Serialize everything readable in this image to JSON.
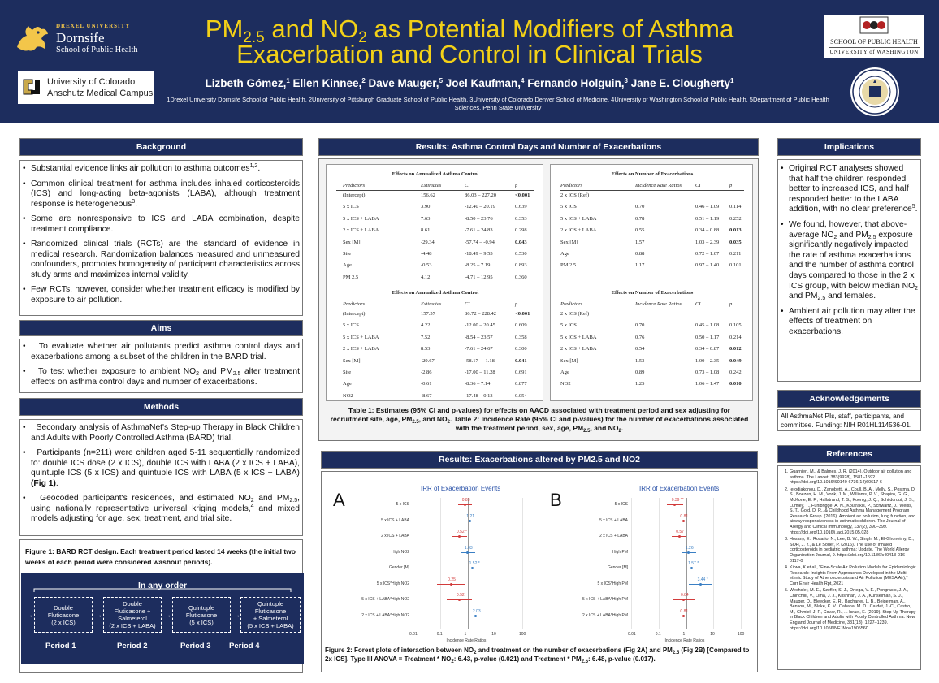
{
  "header": {
    "title_parts": [
      "PM",
      "2.5",
      " and NO",
      "2",
      " as Potential Modifiers of Asthma",
      "Exacerbation and Control in Clinical Trials"
    ],
    "authors": [
      {
        "name": "Lizbeth Gómez,",
        "sup": "1"
      },
      {
        "name": " Ellen Kinnee,",
        "sup": "2"
      },
      {
        "name": " Dave Mauger,",
        "sup": "5"
      },
      {
        "name": " Joel Kaufman,",
        "sup": "4"
      },
      {
        "name": " Fernando Holguin,",
        "sup": "3"
      },
      {
        "name": " Jane E. Clougherty",
        "sup": "1"
      }
    ],
    "affiliations": "1Drexel University Dornsife School of Public Health, 2University of Pittsburgh Graduate School of Public Health, 3University of Colorado Denver School of Medicine, 4University of Washington School of Public Health, 5Department of Public Health Sciences, Penn State University",
    "logos": {
      "drexel_small": "DREXEL UNIVERSITY",
      "drexel_big": "Dornsife",
      "drexel_sub": "School of Public Health",
      "cu_line1": "University of Colorado",
      "cu_line2": "Anschutz Medical Campus",
      "uw_line1": "SCHOOL OF PUBLIC HEALTH",
      "uw_line2": "UNIVERSITY of WASHINGTON"
    }
  },
  "background": {
    "title": "Background",
    "items": [
      "Substantial evidence links air pollution to asthma outcomes1,2.",
      "Common clinical treatment for asthma includes inhaled corticosteroids (ICS) and long-acting beta-agonists (LABA), although treatment response is heterogeneous3.",
      "Some are nonresponsive to ICS and  LABA combination, despite treatment compliance.",
      "Randomized clinical trials (RCTs) are the standard of evidence in medical research. Randomization balances measured and unmeasured confounders, promotes homogeneity of participant characteristics across study arms and maximizes internal validity.",
      "Few RCTs, however, consider whether treatment efficacy is modified by exposure to air pollution."
    ]
  },
  "aims": {
    "title": "Aims",
    "item1": "To evaluate whether air pollutants predict asthma control days and exacerbations among a subset of the children in the BARD trial.",
    "item2_parts": [
      "To test whether exposure to ambient NO",
      "2",
      " and PM",
      "2.5",
      " alter treatment effects on asthma control days and number of exacerbations."
    ]
  },
  "methods": {
    "title": "Methods",
    "item1": "Secondary analysis of AsthmaNet's Step-up Therapy in Black Children and Adults with Poorly Controlled Asthma (BARD) trial.",
    "item2_text": "Participants (n=211) were children aged 5-11 sequentially randomized to: double ICS dose (2 x ICS), double ICS with LABA (2 x ICS + LABA), quintuple ICS (5 x ICS) and quintuple ICS with LABA (5 x ICS + LABA) ",
    "item2_bold": "(Fig 1)",
    "item2_end": ".",
    "item3_parts": [
      "Geocoded participant's residences, and estimated NO",
      "2",
      " and PM",
      "2.5",
      ", using nationally representative universal kriging models,",
      "4",
      " and mixed models adjusting for age, sex, treatment, and trial site."
    ],
    "fig1_caption": "Figure 1: BARD RCT design. Each treatment period lasted 14 weeks (the initial two weeks of each period were considered washout periods).",
    "design": {
      "order_label": "In any order",
      "boxes": [
        [
          "Double",
          "Fluticasone",
          "(2 x ICS)"
        ],
        [
          "Double",
          "Fluticasone +",
          "Salmeterol",
          "(2 x ICS + LABA)"
        ],
        [
          "Quintuple",
          "Fluticasone",
          "(5 x ICS)"
        ],
        [
          "Quintuple Fluticasone",
          "+ Salmeterol",
          "(5 x ICS + LABA)"
        ]
      ],
      "periods": [
        "Period 1",
        "Period 2",
        "Period 3",
        "Period 4"
      ]
    }
  },
  "results": {
    "title": "Results: Asthma Control Days and Number of Exacerbations",
    "tables": [
      {
        "heading": "Effects on Annualized Asthma Control",
        "cols": [
          "Predictors",
          "Estimates",
          "CI",
          "p"
        ],
        "rows": [
          [
            "(Intercept)",
            "156.62",
            "86.03 – 227.20",
            "<0.001"
          ],
          [
            "5 x ICS",
            "3.90",
            "-12.40 – 20.19",
            "0.639"
          ],
          [
            "5 x ICS + LABA",
            "7.63",
            "-8.50 – 23.76",
            "0.353"
          ],
          [
            "2 x ICS + LABA",
            "8.61",
            "-7.61 – 24.83",
            "0.298"
          ],
          [
            "Sex [M]",
            "-29.34",
            "-57.74 – -0.94",
            "0.043"
          ],
          [
            "Site",
            "-4.48",
            "-18.49 – 9.53",
            "0.530"
          ],
          [
            "Age",
            "-0.53",
            "-8.25 – 7.19",
            "0.893"
          ],
          [
            "PM 2.5",
            "4.12",
            "-4.71 – 12.95",
            "0.360"
          ]
        ],
        "bold_rows": [
          0,
          4
        ]
      },
      {
        "heading": "Effects on Annualized Asthma Control",
        "cols": [
          "Predictors",
          "Estimates",
          "CI",
          "p"
        ],
        "rows": [
          [
            "(Intercept)",
            "157.57",
            "86.72 – 228.42",
            "<0.001"
          ],
          [
            "5 x ICS",
            "4.22",
            "-12.00 – 20.45",
            "0.609"
          ],
          [
            "5 x ICS + LABA",
            "7.52",
            "-8.54 – 23.57",
            "0.358"
          ],
          [
            "2 x ICS + LABA",
            "8.53",
            "-7.61 – 24.67",
            "0.300"
          ],
          [
            "Sex [M]",
            "-29.67",
            "-58.17 – -1.18",
            "0.041"
          ],
          [
            "Site",
            "-2.86",
            "-17.00 – 11.28",
            "0.691"
          ],
          [
            "Age",
            "-0.61",
            "-8.36 – 7.14",
            "0.877"
          ],
          [
            "NO2",
            "-8.67",
            "-17.48 – 0.13",
            "0.054"
          ]
        ],
        "bold_rows": [
          0,
          4
        ]
      },
      {
        "heading": "Effects on Number of Exacerbations",
        "cols": [
          "Predictors",
          "Incidence Rate Ratios",
          "CI",
          "p"
        ],
        "rows": [
          [
            "2 x ICS (Ref)",
            "",
            "",
            ""
          ],
          [
            "5 x ICS",
            "0.70",
            "0.46 – 1.09",
            "0.114"
          ],
          [
            "5 x ICS + LABA",
            "0.78",
            "0.51 – 1.19",
            "0.252"
          ],
          [
            "2 x ICS + LABA",
            "0.55",
            "0.34 – 0.88",
            "0.013"
          ],
          [
            "Sex [M]",
            "1.57",
            "1.03 – 2.39",
            "0.035"
          ],
          [
            "Age",
            "0.88",
            "0.72 – 1.07",
            "0.211"
          ],
          [
            "PM 2.5",
            "1.17",
            "0.97 – 1.40",
            "0.101"
          ]
        ],
        "bold_rows": [
          3,
          4
        ]
      },
      {
        "heading": "Effects on Number of Exacerbations",
        "cols": [
          "Predictors",
          "Incidence Rate Ratios",
          "CI",
          "p"
        ],
        "rows": [
          [
            "2 x ICS (Ref)",
            "",
            "",
            ""
          ],
          [
            "5 x ICS",
            "0.70",
            "0.45 – 1.08",
            "0.105"
          ],
          [
            "5 x ICS + LABA",
            "0.76",
            "0.50 – 1.17",
            "0.214"
          ],
          [
            "2 x ICS + LABA",
            "0.54",
            "0.34 – 0.87",
            "0.012"
          ],
          [
            "Sex [M]",
            "1.53",
            "1.00 – 2.35",
            "0.049"
          ],
          [
            "Age",
            "0.89",
            "0.73 – 1.08",
            "0.242"
          ],
          [
            "NO2",
            "1.25",
            "1.06 – 1.47",
            "0.010"
          ]
        ],
        "bold_rows": [
          3,
          4,
          6
        ]
      }
    ],
    "caption_parts": [
      "Table 1: Estimates (95% CI and p-values) for effects on AACD associated with treatment period and sex adjusting for recruitment site, age, PM",
      "2.5",
      ", and NO",
      "2",
      ". Table 2: Incidence Rate (95% CI and p-values) for the number of exacerbations associated with the treatment period, sex, age, PM",
      "2.5",
      ", and NO",
      "2",
      "."
    ]
  },
  "exacerbations": {
    "title": "Results: Exacerbations altered by PM2.5 and NO2",
    "fig2_caption_parts": [
      "Figure 2:  Forest plots of interaction between NO",
      "2",
      " and treatment on the number of exacerbations (Fig 2A) and PM",
      "2.5",
      " (Fig 2B) [Compared to 2x ICS]. Type III ANOVA = Treatment * NO",
      "2",
      ": 6.43, p-value (0.021) and Treatment * PM",
      "2.5",
      ": 6.48, p-value (0.017)."
    ]
  },
  "chart_data": [
    {
      "type": "scatter",
      "panel_label": "A",
      "title": "IRR of Exacerbation Events",
      "xlabel": "Incidence Rate Ratios",
      "xscale": "log",
      "xlim": [
        0.01,
        100
      ],
      "xticks": [
        "0.01",
        "0.1",
        "1",
        "10",
        "100"
      ],
      "categories": [
        "5 x ICS",
        "5 x ICS + LABA",
        "2 x ICS + LABA",
        "High NO2",
        "Gender [M]",
        "5 x ICS*High NO2",
        "5 x ICS + LABA*High NO2",
        "2 x ICS + LABA*High NO2"
      ],
      "values": [
        0.83,
        1.21,
        0.52,
        1.03,
        1.52,
        0.25,
        0.52,
        2.03
      ],
      "ci_low": [
        0.45,
        0.7,
        0.28,
        0.55,
        1.0,
        0.08,
        0.18,
        0.7
      ],
      "ci_high": [
        1.5,
        2.1,
        0.95,
        1.9,
        2.3,
        0.8,
        1.5,
        5.9
      ],
      "value_labels": [
        "0.83",
        "1.21",
        "0.52 *",
        "1.03",
        "1.52 *",
        "0.25",
        "0.52",
        "2.03"
      ],
      "colors": [
        "#d23b3b",
        "#3a7fc4",
        "#d23b3b",
        "#3a7fc4",
        "#3a7fc4",
        "#d23b3b",
        "#d23b3b",
        "#3a7fc4"
      ]
    },
    {
      "type": "scatter",
      "panel_label": "B",
      "title": "IRR of Exacerbation Events",
      "xlabel": "Incidence Rate Ratios",
      "xscale": "log",
      "xlim": [
        0.01,
        100
      ],
      "xticks": [
        "0.01",
        "0.1",
        "1",
        "10",
        "100"
      ],
      "categories": [
        "5 x ICS",
        "5 x ICS + LABA",
        "2 x ICS + LABA",
        "High PM",
        "Gender [M]",
        "5 x ICS*High PM",
        "5 x ICS + LABA*High PM",
        "2 x ICS + LABA*High PM"
      ],
      "values": [
        0.39,
        0.81,
        0.57,
        1.26,
        1.57,
        3.44,
        0.84,
        0.81
      ],
      "ci_low": [
        0.2,
        0.45,
        0.3,
        0.7,
        1.02,
        1.3,
        0.35,
        0.33
      ],
      "ci_high": [
        0.78,
        1.45,
        1.05,
        2.3,
        2.4,
        9.2,
        2.0,
        2.0
      ],
      "value_labels": [
        "0.39 **",
        "0.81",
        "0.57",
        "1.26",
        "1.57 *",
        "3.44 *",
        "0.84",
        "0.81"
      ],
      "colors": [
        "#d23b3b",
        "#d23b3b",
        "#d23b3b",
        "#3a7fc4",
        "#3a7fc4",
        "#3a7fc4",
        "#d23b3b",
        "#d23b3b"
      ]
    }
  ],
  "implications": {
    "title": "Implications",
    "item1": "Original RCT analyses showed that half the children responded better to increased ICS, and half responded better to the LABA addition, with no clear preference5.",
    "item2_parts": [
      "We found, however, that above-average NO",
      "2",
      " and PM",
      "2.5",
      " exposure significantly negatively impacted the rate of asthma exacerbations and the number of asthma control days compared to those in the 2 x ICS group, with below median NO",
      "2",
      " and PM",
      "2.5",
      " and females."
    ],
    "item3": "Ambient air pollution may alter the effects of treatment on exacerbations."
  },
  "acknowledgements": {
    "title": "Acknowledgements",
    "text": "All AsthmaNet PIs, staff, participants, and committee. Funding: NIH R01HL114536-01."
  },
  "references": {
    "title": "References",
    "items": [
      "Guarnieri, M., & Balmes, J. R. (2014). Outdoor air pollution and asthma. The Lancet, 383(9928), 1581–1592. https://doi.org/10.1016/S0140-6736(14)60617-6",
      "Ierodiakonou, D., Zanobetti, A., Coull, B. A., Melly, S., Postma, D. S., Boezen, H. M., Vonk, J. M., Williams, P. V., Shapiro, G. G., McKone, E. F., Hallstrand, T. S., Koenig, J. Q., Schildcrout, J. S., Lumley, T., Fuhlbrigge, A. N., Koutrakis, P., Schwartz, J., Weiss, S. T., Gold, D. R., & Childhood Asthma Management Program Research Group. (2016). Ambient air pollution, lung function, and airway responsiveness in asthmatic children. The Journal of Allergy and Clinical Immunology, 137(2), 390–399. https://doi.org/10.1016/j.jaci.2015.05.028",
      "Hosany, E., Rosario, N., Lee, B. W., Singh, M., El-Ghoneimy, D., SOH, J. Y., & Le Souef, P. (2016). The use of inhaled corticosteroids in pediatric asthma: Update. The World Allergy Organization Journal, 9. https://doi.org/10.1186/s40413-016-0117-0",
      "Kirwa, K et al., \"Fine-Scale Air Pollution Models for Epidemiologic Research: Insights From Approaches Developed in the Multi-ethnic Study of Atherosclerosis and Air Pollution (MESA Air),\" Curr Envir Health Rpt, 2021",
      "Wechsler, M. E., Szefler, S. J., Ortega, V. E., Pongracic, J. A., Chinchilli, V., Lima, J. J., Krishnan, J. A., Kunselman, S. J., Mauger, D., Bleecker, E. R., Bacharier, L. B., Beigelman, A., Benson, M., Blake, K. V., Cabana, M. D., Cardet, J.-C., Castro, M., Chmiel, J. F., Covar, R., ... Israel, E. (2019). Step-Up Therapy in Black Children and Adults with Poorly Controlled Asthma. New England Journal of Medicine, 381(13), 1227–1239. https://doi.org/10.1056/NEJMoa1905560"
    ]
  }
}
